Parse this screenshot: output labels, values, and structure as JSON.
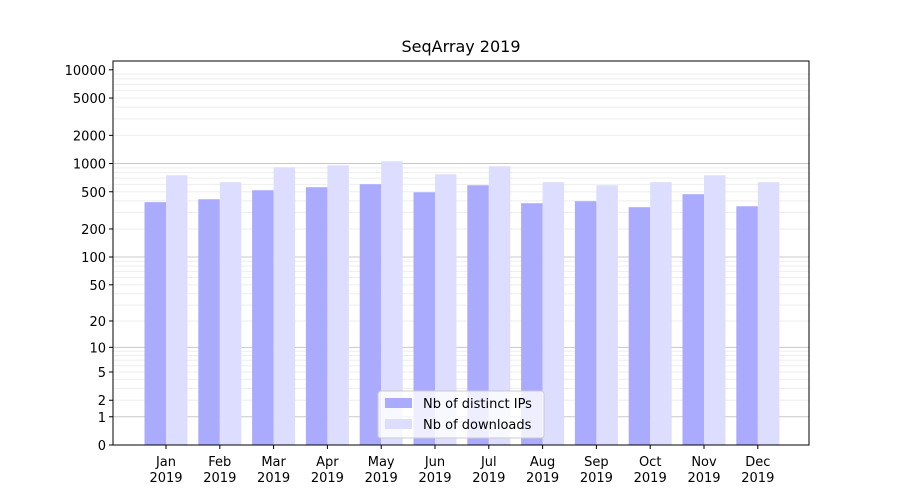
{
  "chart_data": {
    "type": "bar",
    "title": "SeqArray 2019",
    "xlabel": "",
    "ylabel": "",
    "yscale": "symlog (log10(1+y))",
    "ylim": [
      0,
      13000
    ],
    "yticks": [
      0,
      1,
      2,
      5,
      10,
      20,
      50,
      100,
      200,
      500,
      1000,
      2000,
      5000,
      10000
    ],
    "grid": true,
    "legend_position": "bottom-center",
    "categories": [
      "Jan\n2019",
      "Feb\n2019",
      "Mar\n2019",
      "Apr\n2019",
      "May\n2019",
      "Jun\n2019",
      "Jul\n2019",
      "Aug\n2019",
      "Sep\n2019",
      "Oct\n2019",
      "Nov\n2019",
      "Dec\n2019"
    ],
    "series": [
      {
        "name": "Nb of distinct IPs",
        "color": "#aaaaff",
        "values": [
          387,
          416,
          519,
          559,
          602,
          494,
          587,
          377,
          396,
          342,
          471,
          350
        ]
      },
      {
        "name": "Nb of downloads",
        "color": "#ddddff",
        "values": [
          750,
          632,
          913,
          959,
          1058,
          769,
          936,
          632,
          587,
          632,
          750,
          632
        ]
      }
    ]
  }
}
